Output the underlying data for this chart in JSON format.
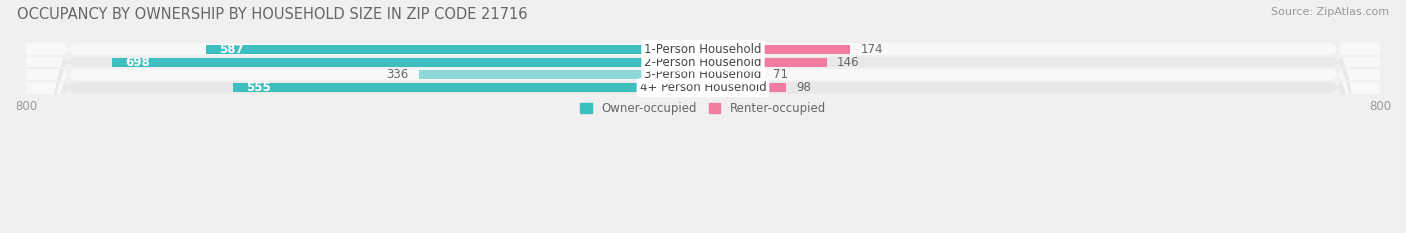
{
  "title": "OCCUPANCY BY OWNERSHIP BY HOUSEHOLD SIZE IN ZIP CODE 21716",
  "source": "Source: ZipAtlas.com",
  "categories": [
    "1-Person Household",
    "2-Person Household",
    "3-Person Household",
    "4+ Person Household"
  ],
  "owner_values": [
    587,
    698,
    336,
    555
  ],
  "renter_values": [
    174,
    146,
    71,
    98
  ],
  "owner_color": "#3DBFBF",
  "owner_color_light": "#8ED8D8",
  "renter_color": "#F27BA0",
  "renter_color_light": "#F5A8C0",
  "owner_label": "Owner-occupied",
  "renter_label": "Renter-occupied",
  "label_color_owner_inside": "#ffffff",
  "label_color_outside": "#888888",
  "axis_max": 800,
  "axis_min": -800,
  "background_color": "#f0f0f0",
  "row_bg_light": "#f8f8f8",
  "row_bg_dark": "#e8e8e8",
  "title_fontsize": 10.5,
  "source_fontsize": 8,
  "bar_label_fontsize": 8.5,
  "category_fontsize": 8.5,
  "axis_label_fontsize": 8.5,
  "legend_fontsize": 8.5
}
